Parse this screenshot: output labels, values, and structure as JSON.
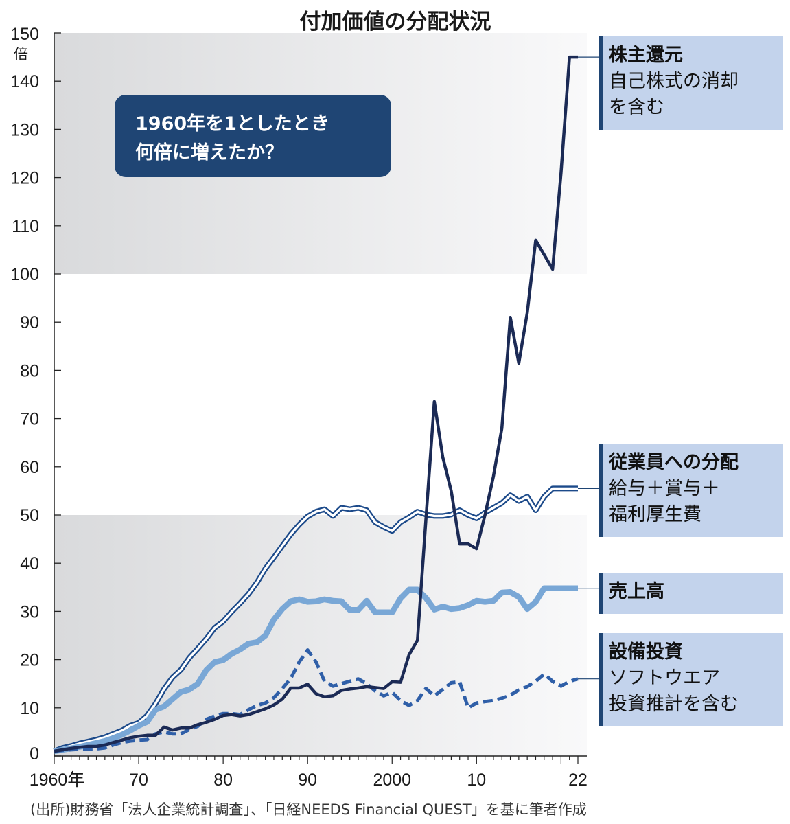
{
  "chart_data": {
    "type": "line",
    "title": "付加価値の分配状況",
    "unit_label": "倍",
    "annotation": [
      "1960年を1としたとき",
      "何倍に増えたか？"
    ],
    "source": "(出所)財務省「法人企業統計調査」、「日経NEEDS Financial QUEST」を基に筆者作成",
    "ylim": [
      0,
      150
    ],
    "xlim": [
      1960,
      2022
    ],
    "y_ticks": [
      0,
      10,
      20,
      30,
      40,
      50,
      60,
      70,
      80,
      90,
      100,
      110,
      120,
      130,
      140,
      150
    ],
    "x_ticks": [
      {
        "value": 1960,
        "label": "1960年"
      },
      {
        "value": 1970,
        "label": "70"
      },
      {
        "value": 1980,
        "label": "80"
      },
      {
        "value": 1990,
        "label": "90"
      },
      {
        "value": 2000,
        "label": "2000"
      },
      {
        "value": 2010,
        "label": "10"
      },
      {
        "value": 2022,
        "label": "22"
      }
    ],
    "x": [
      1960,
      1961,
      1962,
      1963,
      1964,
      1965,
      1966,
      1967,
      1968,
      1969,
      1970,
      1971,
      1972,
      1973,
      1974,
      1975,
      1976,
      1977,
      1978,
      1979,
      1980,
      1981,
      1982,
      1983,
      1984,
      1985,
      1986,
      1987,
      1988,
      1989,
      1990,
      1991,
      1992,
      1993,
      1994,
      1995,
      1996,
      1997,
      1998,
      1999,
      2000,
      2001,
      2002,
      2003,
      2004,
      2005,
      2006,
      2007,
      2008,
      2009,
      2010,
      2011,
      2012,
      2013,
      2014,
      2015,
      2016,
      2017,
      2018,
      2019,
      2020,
      2021,
      2022
    ],
    "series": [
      {
        "name": "株主還元",
        "note": [
          "自己株式の消却",
          "を含む"
        ],
        "style": "dark",
        "color": "#1b2a55",
        "values": [
          1,
          1.3,
          1.6,
          1.8,
          2.0,
          2.0,
          2.3,
          2.8,
          3.3,
          3.8,
          4.1,
          4.3,
          4.3,
          6.0,
          5.4,
          5.8,
          5.8,
          6.5,
          7.0,
          7.6,
          8.4,
          8.6,
          8.3,
          8.6,
          9.2,
          9.8,
          10.6,
          11.8,
          14.1,
          14.1,
          14.9,
          12.9,
          12.3,
          12.5,
          13.6,
          13.9,
          14.1,
          14.4,
          14.2,
          14.0,
          15.4,
          15.3,
          21.0,
          24.0,
          49.0,
          73.5,
          62.0,
          55.0,
          44.0,
          44.0,
          43.0,
          50.0,
          58.0,
          68.0,
          91.0,
          81.5,
          92.0,
          107.0,
          104.0,
          101.0,
          121.0,
          145.0,
          145.0
        ]
      },
      {
        "name": "従業員への分配",
        "note": [
          "給与＋賞与＋",
          "福利厚生費"
        ],
        "style": "outline",
        "color": "#1c4a8a",
        "values": [
          1,
          1.7,
          2.1,
          2.6,
          3.0,
          3.4,
          3.9,
          4.6,
          5.3,
          6.3,
          6.9,
          8.4,
          10.9,
          13.9,
          16.3,
          17.9,
          20.4,
          22.3,
          24.3,
          26.6,
          27.9,
          29.9,
          31.7,
          33.6,
          36.0,
          38.9,
          41.2,
          43.6,
          46.0,
          48.0,
          49.7,
          50.7,
          51.2,
          49.8,
          51.5,
          51.2,
          51.5,
          51.0,
          48.5,
          47.5,
          46.7,
          48.5,
          49.5,
          50.7,
          50.1,
          49.8,
          49.8,
          50.1,
          51.0,
          50.0,
          49.3,
          50.5,
          51.5,
          52.5,
          54.1,
          52.9,
          53.8,
          51.0,
          53.8,
          55.5,
          55.5,
          55.5,
          55.5
        ]
      },
      {
        "name": "売上高",
        "note": [],
        "style": "thick",
        "color": "#79a7d6",
        "values": [
          1,
          1.3,
          1.6,
          1.9,
          2.3,
          2.7,
          3.1,
          3.7,
          4.4,
          5.3,
          6.3,
          7.1,
          9.6,
          10.3,
          11.8,
          13.3,
          13.8,
          15.0,
          17.8,
          19.5,
          19.9,
          21.2,
          22.1,
          23.3,
          23.6,
          25.0,
          28.3,
          30.5,
          32.1,
          32.5,
          32.0,
          32.1,
          32.5,
          32.2,
          32.1,
          30.3,
          30.3,
          32.2,
          29.8,
          29.8,
          29.8,
          32.7,
          34.5,
          34.5,
          32.8,
          30.4,
          31.0,
          30.5,
          30.7,
          31.3,
          32.2,
          32.0,
          32.2,
          33.9,
          34.0,
          33.0,
          30.5,
          32.0,
          34.8,
          34.8,
          34.8,
          34.8,
          34.8
        ]
      },
      {
        "name": "設備投資",
        "note": [
          "ソフトウエア",
          "投資推計を含む"
        ],
        "style": "dashed",
        "color": "#2f5fa8",
        "values": [
          1,
          1.2,
          1.3,
          1.4,
          1.5,
          1.5,
          1.7,
          2.3,
          2.8,
          3.1,
          3.3,
          3.4,
          4.6,
          5.0,
          4.6,
          4.6,
          5.5,
          6.2,
          7.6,
          8.3,
          8.8,
          8.8,
          8.6,
          9.6,
          10.5,
          11.0,
          12.1,
          14.0,
          16.1,
          19.5,
          22.0,
          19.5,
          15.5,
          14.5,
          15.0,
          15.5,
          16.0,
          15.0,
          13.5,
          12.5,
          13.2,
          11.5,
          10.5,
          11.5,
          14.0,
          12.5,
          13.8,
          15.2,
          15.4,
          10.0,
          11.0,
          11.3,
          11.5,
          12.0,
          12.6,
          13.7,
          14.4,
          15.5,
          17.0,
          15.5,
          14.5,
          15.5,
          16.0
        ]
      }
    ]
  }
}
